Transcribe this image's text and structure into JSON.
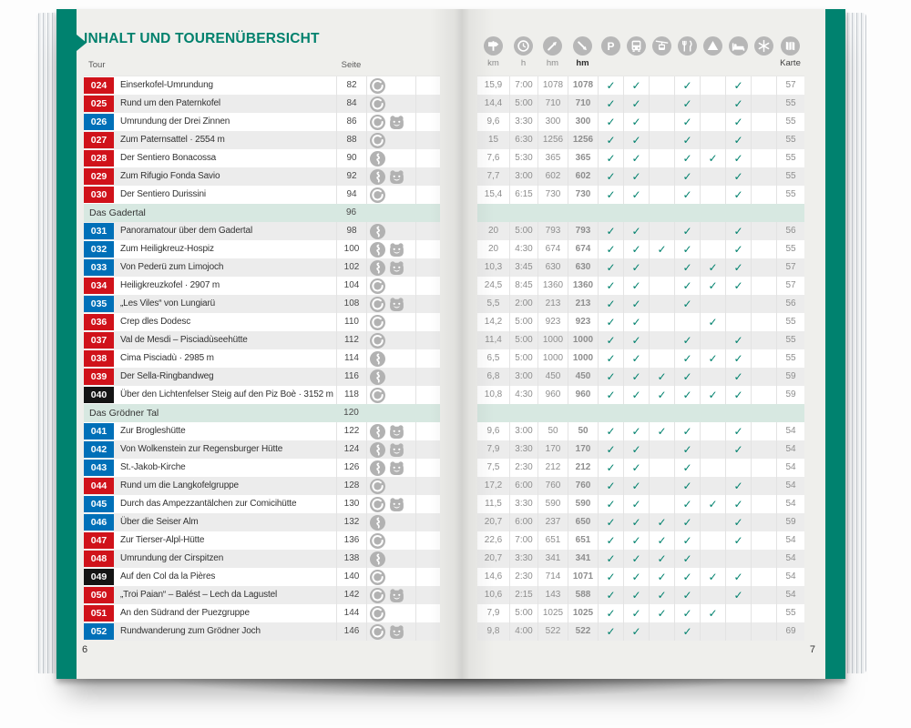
{
  "page": {
    "title": "INHALT UND TOURENÜBERSICHT",
    "left_page_number": "6",
    "right_page_number": "7"
  },
  "table_headers": {
    "tour": "Tour",
    "seite": "Seite"
  },
  "colors": {
    "accent_teal": "#00816d",
    "band_teal": "#00826f",
    "section_band": "#d7e8e1",
    "badge_red": "#d0121a",
    "badge_blue": "#0070b8",
    "badge_black": "#141414",
    "check": "#00816d",
    "icon_gray": "#b2b2b2"
  },
  "stat_columns": [
    {
      "icon": "signpost-icon",
      "label": "km"
    },
    {
      "icon": "clock-icon",
      "label": "h"
    },
    {
      "icon": "ascent-icon",
      "label": "hm"
    },
    {
      "icon": "descent-icon",
      "label": "hm",
      "bold": true
    }
  ],
  "feature_columns": [
    {
      "icon": "parking-icon"
    },
    {
      "icon": "bus-icon"
    },
    {
      "icon": "cablecar-icon"
    },
    {
      "icon": "restaurant-icon"
    },
    {
      "icon": "hut-icon"
    },
    {
      "icon": "bed-icon"
    },
    {
      "icon": "snowflake-icon"
    }
  ],
  "karte_column": {
    "icon": "map-icon",
    "label": "Karte"
  },
  "rows": [
    {
      "type": "tour",
      "nr": "024",
      "c": "red",
      "name": "Einserkofel-Umrundung",
      "seite": "82",
      "route": "loop",
      "family": false,
      "km": "15,9",
      "h": "7:00",
      "up": "1078",
      "down": "1078",
      "checks": [
        1,
        1,
        0,
        1,
        0,
        1,
        0
      ],
      "karte": "57",
      "shade": false
    },
    {
      "type": "tour",
      "nr": "025",
      "c": "red",
      "name": "Rund um den Paternkofel",
      "seite": "84",
      "route": "loop",
      "family": false,
      "km": "14,4",
      "h": "5:00",
      "up": "710",
      "down": "710",
      "checks": [
        1,
        1,
        0,
        1,
        0,
        1,
        0
      ],
      "karte": "55",
      "shade": true
    },
    {
      "type": "tour",
      "nr": "026",
      "c": "blue",
      "name": "Umrundung der Drei Zinnen",
      "seite": "86",
      "route": "loop",
      "family": true,
      "km": "9,6",
      "h": "3:30",
      "up": "300",
      "down": "300",
      "checks": [
        1,
        1,
        0,
        1,
        0,
        1,
        0
      ],
      "karte": "55",
      "shade": false
    },
    {
      "type": "tour",
      "nr": "027",
      "c": "red",
      "name": "Zum Paternsattel · 2554 m",
      "seite": "88",
      "route": "loop",
      "family": false,
      "km": "15",
      "h": "6:30",
      "up": "1256",
      "down": "1256",
      "checks": [
        1,
        1,
        0,
        1,
        0,
        1,
        0
      ],
      "karte": "55",
      "shade": true
    },
    {
      "type": "tour",
      "nr": "028",
      "c": "red",
      "name": "Der Sentiero Bonacossa",
      "seite": "90",
      "route": "winding",
      "family": false,
      "km": "7,6",
      "h": "5:30",
      "up": "365",
      "down": "365",
      "checks": [
        1,
        1,
        0,
        1,
        1,
        1,
        0
      ],
      "karte": "55",
      "shade": false
    },
    {
      "type": "tour",
      "nr": "029",
      "c": "red",
      "name": "Zum Rifugio Fonda Savio",
      "seite": "92",
      "route": "winding",
      "family": true,
      "km": "7,7",
      "h": "3:00",
      "up": "602",
      "down": "602",
      "checks": [
        1,
        1,
        0,
        1,
        0,
        1,
        0
      ],
      "karte": "55",
      "shade": true
    },
    {
      "type": "tour",
      "nr": "030",
      "c": "red",
      "name": "Der Sentiero Durissini",
      "seite": "94",
      "route": "loop",
      "family": false,
      "km": "15,4",
      "h": "6:15",
      "up": "730",
      "down": "730",
      "checks": [
        1,
        1,
        0,
        1,
        0,
        1,
        0
      ],
      "karte": "55",
      "shade": false
    },
    {
      "type": "section",
      "name": "Das Gadertal",
      "seite": "96"
    },
    {
      "type": "tour",
      "nr": "031",
      "c": "blue",
      "name": "Panoramatour über dem Gadertal",
      "seite": "98",
      "route": "winding",
      "family": false,
      "km": "20",
      "h": "5:00",
      "up": "793",
      "down": "793",
      "checks": [
        1,
        1,
        0,
        1,
        0,
        1,
        0
      ],
      "karte": "56",
      "shade": true
    },
    {
      "type": "tour",
      "nr": "032",
      "c": "blue",
      "name": "Zum Heiligkreuz-Hospiz",
      "seite": "100",
      "route": "winding",
      "family": true,
      "km": "20",
      "h": "4:30",
      "up": "674",
      "down": "674",
      "checks": [
        1,
        1,
        1,
        1,
        0,
        1,
        0
      ],
      "karte": "55",
      "shade": false
    },
    {
      "type": "tour",
      "nr": "033",
      "c": "blue",
      "name": "Von Pederü zum Limojoch",
      "seite": "102",
      "route": "winding",
      "family": true,
      "km": "10,3",
      "h": "3:45",
      "up": "630",
      "down": "630",
      "checks": [
        1,
        1,
        0,
        1,
        1,
        1,
        0
      ],
      "karte": "57",
      "shade": true
    },
    {
      "type": "tour",
      "nr": "034",
      "c": "red",
      "name": "Heiligkreuzkofel · 2907 m",
      "seite": "104",
      "route": "loop",
      "family": false,
      "km": "24,5",
      "h": "8:45",
      "up": "1360",
      "down": "1360",
      "checks": [
        1,
        1,
        0,
        1,
        1,
        1,
        0
      ],
      "karte": "57",
      "shade": false
    },
    {
      "type": "tour",
      "nr": "035",
      "c": "blue",
      "name": "„Les Viles“ von Lungiarü",
      "seite": "108",
      "route": "loop",
      "family": true,
      "km": "5,5",
      "h": "2:00",
      "up": "213",
      "down": "213",
      "checks": [
        1,
        1,
        0,
        1,
        0,
        0,
        0
      ],
      "karte": "56",
      "shade": true
    },
    {
      "type": "tour",
      "nr": "036",
      "c": "red",
      "name": "Crep dles Dodesc",
      "seite": "110",
      "route": "loop",
      "family": false,
      "km": "14,2",
      "h": "5:00",
      "up": "923",
      "down": "923",
      "checks": [
        1,
        1,
        0,
        0,
        1,
        0,
        0
      ],
      "karte": "55",
      "shade": false
    },
    {
      "type": "tour",
      "nr": "037",
      "c": "red",
      "name": "Val de Mesdi – Pisciadùseehütte",
      "seite": "112",
      "route": "loop",
      "family": false,
      "km": "11,4",
      "h": "5:00",
      "up": "1000",
      "down": "1000",
      "checks": [
        1,
        1,
        0,
        1,
        0,
        1,
        0
      ],
      "karte": "55",
      "shade": true
    },
    {
      "type": "tour",
      "nr": "038",
      "c": "red",
      "name": "Cima Pisciadù · 2985 m",
      "seite": "114",
      "route": "winding",
      "family": false,
      "km": "6,5",
      "h": "5:00",
      "up": "1000",
      "down": "1000",
      "checks": [
        1,
        1,
        0,
        1,
        1,
        1,
        0
      ],
      "karte": "55",
      "shade": false
    },
    {
      "type": "tour",
      "nr": "039",
      "c": "red",
      "name": "Der Sella-Ringbandweg",
      "seite": "116",
      "route": "winding",
      "family": false,
      "km": "6,8",
      "h": "3:00",
      "up": "450",
      "down": "450",
      "checks": [
        1,
        1,
        1,
        1,
        0,
        1,
        0
      ],
      "karte": "59",
      "shade": true
    },
    {
      "type": "tour",
      "nr": "040",
      "c": "black",
      "name": "Über den Lichtenfelser Steig auf den Piz Boè · 3152 m",
      "seite": "118",
      "route": "loop",
      "family": false,
      "km": "10,8",
      "h": "4:30",
      "up": "960",
      "down": "960",
      "checks": [
        1,
        1,
        1,
        1,
        1,
        1,
        0
      ],
      "karte": "59",
      "shade": false
    },
    {
      "type": "section",
      "name": "Das Grödner Tal",
      "seite": "120"
    },
    {
      "type": "tour",
      "nr": "041",
      "c": "blue",
      "name": "Zur Brogleshütte",
      "seite": "122",
      "route": "winding",
      "family": true,
      "km": "9,6",
      "h": "3:00",
      "up": "50",
      "down": "50",
      "checks": [
        1,
        1,
        1,
        1,
        0,
        1,
        0
      ],
      "karte": "54",
      "shade": false
    },
    {
      "type": "tour",
      "nr": "042",
      "c": "blue",
      "name": "Von Wolkenstein zur Regensburger Hütte",
      "seite": "124",
      "route": "winding",
      "family": true,
      "km": "7,9",
      "h": "3:30",
      "up": "170",
      "down": "170",
      "checks": [
        1,
        1,
        0,
        1,
        0,
        1,
        0
      ],
      "karte": "54",
      "shade": true
    },
    {
      "type": "tour",
      "nr": "043",
      "c": "blue",
      "name": "St.-Jakob-Kirche",
      "seite": "126",
      "route": "winding",
      "family": true,
      "km": "7,5",
      "h": "2:30",
      "up": "212",
      "down": "212",
      "checks": [
        1,
        1,
        0,
        1,
        0,
        0,
        0
      ],
      "karte": "54",
      "shade": false
    },
    {
      "type": "tour",
      "nr": "044",
      "c": "red",
      "name": "Rund um die Langkofelgruppe",
      "seite": "128",
      "route": "loop",
      "family": false,
      "km": "17,2",
      "h": "6:00",
      "up": "760",
      "down": "760",
      "checks": [
        1,
        1,
        0,
        1,
        0,
        1,
        0
      ],
      "karte": "54",
      "shade": true
    },
    {
      "type": "tour",
      "nr": "045",
      "c": "blue",
      "name": "Durch das Ampezzantälchen zur Comicihütte",
      "seite": "130",
      "route": "loop",
      "family": true,
      "km": "11,5",
      "h": "3:30",
      "up": "590",
      "down": "590",
      "checks": [
        1,
        1,
        0,
        1,
        1,
        1,
        0
      ],
      "karte": "54",
      "shade": false
    },
    {
      "type": "tour",
      "nr": "046",
      "c": "blue",
      "name": "Über die Seiser Alm",
      "seite": "132",
      "route": "winding",
      "family": false,
      "km": "20,7",
      "h": "6:00",
      "up": "237",
      "down": "650",
      "checks": [
        1,
        1,
        1,
        1,
        0,
        1,
        0
      ],
      "karte": "59",
      "shade": true
    },
    {
      "type": "tour",
      "nr": "047",
      "c": "red",
      "name": "Zur Tierser-Alpl-Hütte",
      "seite": "136",
      "route": "loop",
      "family": false,
      "km": "22,6",
      "h": "7:00",
      "up": "651",
      "down": "651",
      "checks": [
        1,
        1,
        1,
        1,
        0,
        1,
        0
      ],
      "karte": "54",
      "shade": false
    },
    {
      "type": "tour",
      "nr": "048",
      "c": "red",
      "name": "Umrundung der Cirspitzen",
      "seite": "138",
      "route": "winding",
      "family": false,
      "km": "20,7",
      "h": "3:30",
      "up": "341",
      "down": "341",
      "checks": [
        1,
        1,
        1,
        1,
        0,
        0,
        0
      ],
      "karte": "54",
      "shade": true
    },
    {
      "type": "tour",
      "nr": "049",
      "c": "black",
      "name": "Auf den Col da la Pières",
      "seite": "140",
      "route": "loop",
      "family": false,
      "km": "14,6",
      "h": "2:30",
      "up": "714",
      "down": "1071",
      "checks": [
        1,
        1,
        1,
        1,
        1,
        1,
        0
      ],
      "karte": "54",
      "shade": false
    },
    {
      "type": "tour",
      "nr": "050",
      "c": "red",
      "name": "„Troi Paian“ – Balést – Lech da Lagustel",
      "seite": "142",
      "route": "loop",
      "family": true,
      "km": "10,6",
      "h": "2:15",
      "up": "143",
      "down": "588",
      "checks": [
        1,
        1,
        1,
        1,
        0,
        1,
        0
      ],
      "karte": "54",
      "shade": true
    },
    {
      "type": "tour",
      "nr": "051",
      "c": "red",
      "name": "An den Südrand der Puezgruppe",
      "seite": "144",
      "route": "loop",
      "family": false,
      "km": "7,9",
      "h": "5:00",
      "up": "1025",
      "down": "1025",
      "checks": [
        1,
        1,
        1,
        1,
        1,
        0,
        0
      ],
      "karte": "55",
      "shade": false
    },
    {
      "type": "tour",
      "nr": "052",
      "c": "blue",
      "name": "Rundwanderung zum Grödner Joch",
      "seite": "146",
      "route": "loop",
      "family": true,
      "km": "9,8",
      "h": "4:00",
      "up": "522",
      "down": "522",
      "checks": [
        1,
        1,
        0,
        1,
        0,
        0,
        0
      ],
      "karte": "69",
      "shade": true
    }
  ]
}
